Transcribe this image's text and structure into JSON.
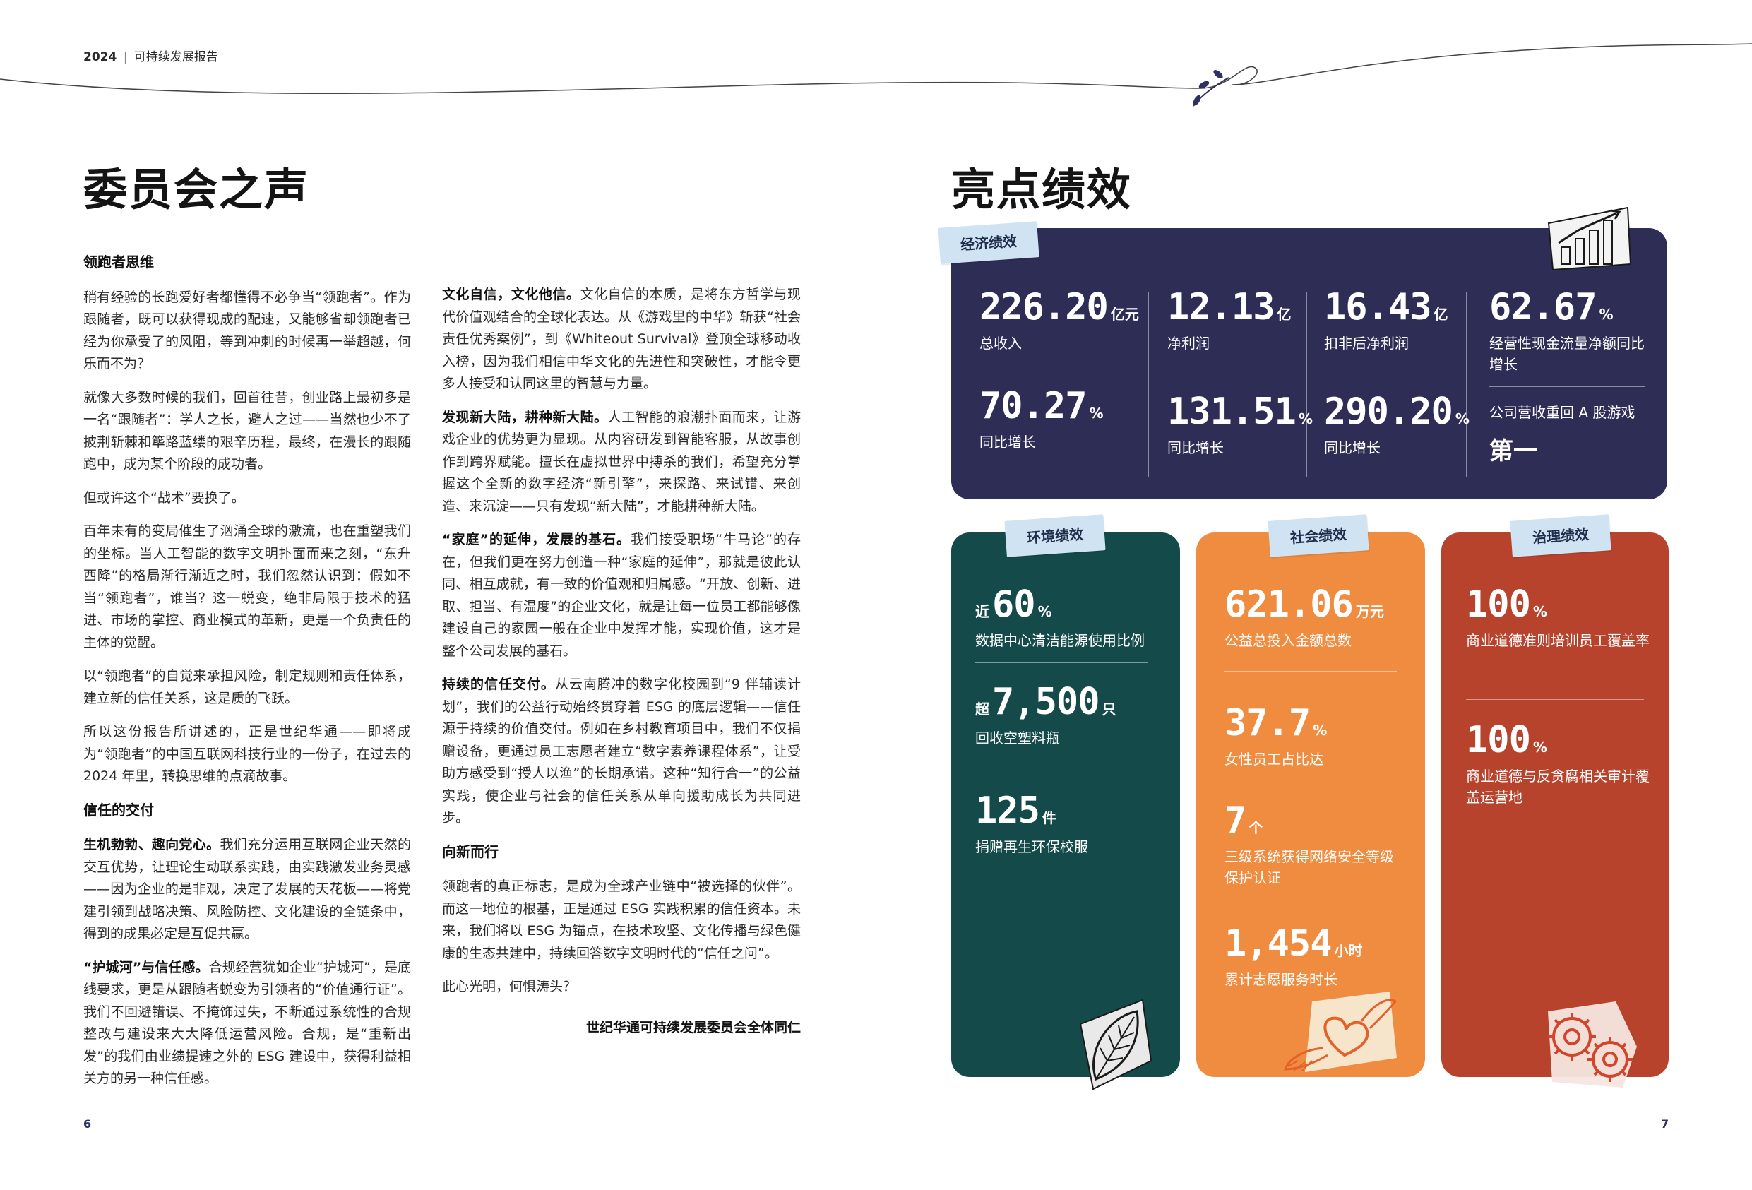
{
  "header": {
    "year": "2024",
    "separator": "|",
    "title": "可持续发展报告"
  },
  "left": {
    "title": "委员会之声",
    "col1": {
      "h_leader": "领跑者思维",
      "p1": "稍有经验的长跑爱好者都懂得不必争当“领跑者”。作为跟随者，既可以获得现成的配速，又能够省却领跑者已经为你承受了的风阻，等到冲刺的时候再一举超越，何乐而不为？",
      "p2": "就像大多数时候的我们，回首往昔，创业路上最初多是一名“跟随者”：学人之长，避人之过——当然也少不了披荆斩棘和筚路蓝缕的艰辛历程，最终，在漫长的跟随跑中，成为某个阶段的成功者。",
      "p3": "但或许这个“战术”要换了。",
      "p4": "百年未有的变局催生了汹涌全球的激流，也在重塑我们的坐标。当人工智能的数字文明扑面而来之刻，“东升西降”的格局渐行渐近之时，我们忽然认识到：假如不当“领跑者”，谁当？这一蜕变，绝非局限于技术的猛进、市场的掌控、商业模式的革新，更是一个负责任的主体的觉醒。",
      "p5": "以“领跑者”的自觉来承担风险，制定规则和责任体系，建立新的信任关系，这是质的飞跃。",
      "p6": "所以这份报告所讲述的，正是世纪华通——即将成为“领跑者”的中国互联网科技行业的一份子，在过去的 2024 年里，转换思维的点滴故事。",
      "h_trust": "信任的交付",
      "p7_lead": "生机勃勃、趣向党心。",
      "p7": "我们充分运用互联网企业天然的交互优势，让理论生动联系实践，由实践激发业务灵感——因为企业的是非观，决定了发展的天花板——将党建引领到战略决策、风险防控、文化建设的全链条中，得到的成果必定是互促共赢。",
      "p8_lead": "“护城河”与信任感。",
      "p8": "合规经营犹如企业“护城河”，是底线要求，更是从跟随者蜕变为引领者的“价值通行证”。我们不回避错误、不掩饰过失，不断通过系统性的合规整改与建设来大大降低运营风险。合规，是“重新出发”的我们由业绩提速之外的 ESG 建设中，获得利益相关方的另一种信任感。"
    },
    "col2": {
      "p1_lead": "文化自信，文化他信。",
      "p1": "文化自信的本质，是将东方哲学与现代价值观结合的全球化表达。从《游戏里的中华》斩获“社会责任优秀案例”，到《Whiteout Survival》登顶全球移动收入榜，因为我们相信中华文化的先进性和突破性，才能令更多人接受和认同这里的智慧与力量。",
      "p2_lead": "发现新大陆，耕种新大陆。",
      "p2": "人工智能的浪潮扑面而来，让游戏企业的优势更为显现。从内容研发到智能客服，从故事创作到跨界赋能。擅长在虚拟世界中搏杀的我们，希望充分掌握这个全新的数字经济“新引擎”，来探路、来试错、来创造、来沉淀——只有发现“新大陆”，才能耕种新大陆。",
      "p3_lead": "“家庭”的延伸，发展的基石。",
      "p3": "我们接受职场“牛马论”的存在，但我们更在努力创造一种“家庭的延伸”，那就是彼此认同、相互成就，有一致的价值观和归属感。“开放、创新、进取、担当、有温度”的企业文化，就是让每一位员工都能够像建设自己的家园一般在企业中发挥才能，实现价值，这才是整个公司发展的基石。",
      "p4_lead": "持续的信任交付。",
      "p4": "从云南腾冲的数字化校园到“9 伴辅读计划”，我们的公益行动始终贯穿着 ESG 的底层逻辑——信任源于持续的价值交付。例如在乡村教育项目中，我们不仅捐赠设备，更通过员工志愿者建立“数字素养课程体系”，让受助方感受到“授人以渔”的长期承诺。这种“知行合一”的公益实践，使企业与社会的信任关系从单向援助成长为共同进步。",
      "h_forward": "向新而行",
      "p5": "领跑者的真正标志，是成为全球产业链中“被选择的伙伴”。而这一地位的根基，正是通过 ESG 实践积累的信任资本。未来，我们将以 ESG 为锚点，在技术攻坚、文化传播与绿色健康的生态共建中，持续回答数字文明时代的“信任之问”。",
      "p6": "此心光明，何惧涛头？",
      "signature": "世纪华通可持续发展委员会全体同仁"
    },
    "page": "6"
  },
  "right": {
    "title": "亮点绩效",
    "econ": {
      "tag": "经济绩效",
      "s1": {
        "value": "226.20",
        "unit": "亿元",
        "label": "总收入"
      },
      "s2": {
        "value": "70.27",
        "unit": "%",
        "label": "同比增长"
      },
      "s3": {
        "value": "12.13",
        "unit": "亿",
        "label": "净利润"
      },
      "s4": {
        "value": "131.51",
        "unit": "%",
        "label": "同比增长"
      },
      "s5": {
        "value": "16.43",
        "unit": "亿",
        "label": "扣非后净利润"
      },
      "s6": {
        "value": "290.20",
        "unit": "%",
        "label": "同比增长"
      },
      "s7": {
        "value": "62.67",
        "unit": "%",
        "label": "经营性现金流量净额同比增长"
      },
      "s8": {
        "label": "公司营收重回 A 股游戏",
        "value": "第一"
      }
    },
    "env": {
      "tag": "环境绩效",
      "s1": {
        "prefix": "近",
        "value": "60",
        "unit": "%",
        "label": "数据中心清洁能源使用比例"
      },
      "s2": {
        "prefix": "超",
        "value": "7,500",
        "unit": "只",
        "label": "回收空塑料瓶"
      },
      "s3": {
        "value": "125",
        "unit": "件",
        "label": "捐赠再生环保校服"
      }
    },
    "soc": {
      "tag": "社会绩效",
      "s1": {
        "value": "621.06",
        "unit": "万元",
        "label": "公益总投入金额总数"
      },
      "s2": {
        "value": "37.7",
        "unit": "%",
        "label": "女性员工占比达"
      },
      "s3": {
        "value": "7",
        "unit": "个",
        "label": "三级系统获得网络安全等级保护认证"
      },
      "s4": {
        "value": "1,454",
        "unit": "小时",
        "label": "累计志愿服务时长"
      }
    },
    "gov": {
      "tag": "治理绩效",
      "s1": {
        "value": "100",
        "unit": "%",
        "label": "商业道德准则培训员工覆盖率"
      },
      "s2": {
        "value": "100",
        "unit": "%",
        "label": "商业道德与反贪腐相关审计覆盖运营地"
      }
    },
    "page": "7"
  },
  "colors": {
    "navy": "#2e2d56",
    "teal": "#144a4a",
    "orange": "#f08c40",
    "rust": "#b8432d",
    "tag": "#cfe3f3"
  },
  "icons": [
    "bar-chart-icon",
    "leaf-icon",
    "winged-heart-icon",
    "gears-icon",
    "sprig-icon"
  ]
}
